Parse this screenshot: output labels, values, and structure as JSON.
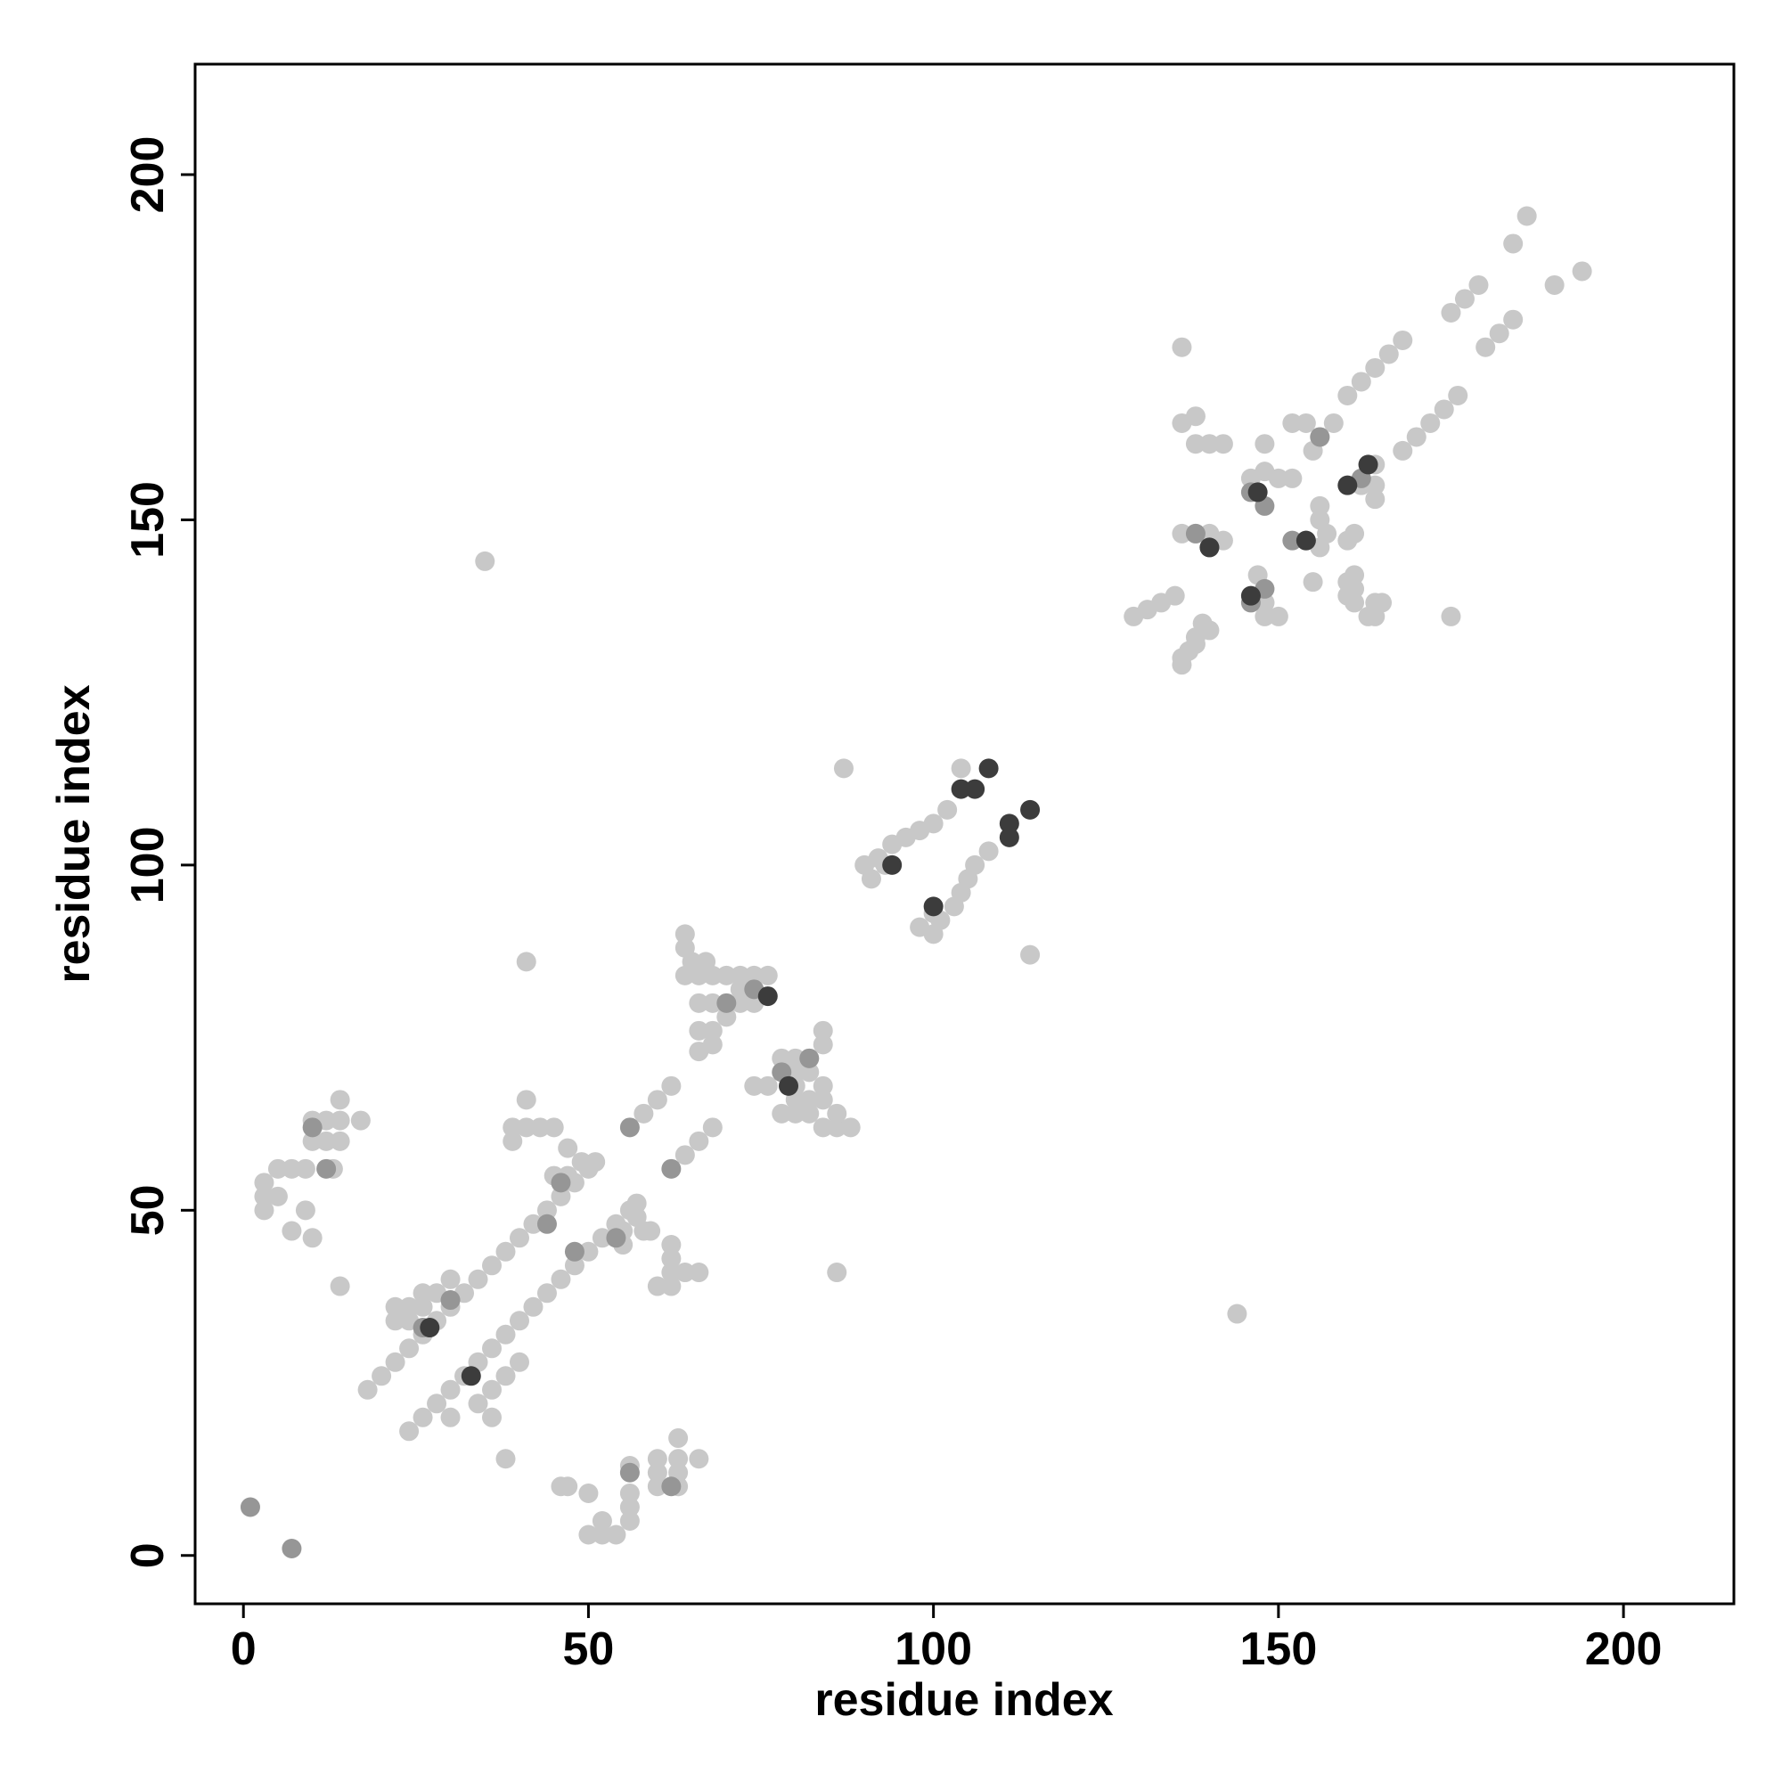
{
  "chart_data": {
    "type": "scatter",
    "x_label": "residue index",
    "y_label": "residue index",
    "xlim": [
      -7,
      216
    ],
    "ylim": [
      -7,
      216
    ],
    "xticks": [
      0,
      50,
      100,
      150,
      200
    ],
    "yticks": [
      0,
      50,
      100,
      150,
      200
    ],
    "series": [
      {
        "color": "#c8c8c8",
        "x": [
          18,
          20,
          22,
          24,
          26,
          28,
          30,
          32,
          34,
          36,
          38,
          40,
          42,
          44,
          46,
          48,
          50,
          22,
          22,
          24,
          26,
          28,
          30,
          24,
          26,
          24,
          26,
          28,
          30,
          32,
          34,
          36,
          38,
          40,
          42,
          44,
          46,
          48,
          50,
          52,
          54,
          56,
          34,
          36,
          36,
          38,
          40,
          30,
          35,
          144,
          41,
          86,
          3,
          3,
          3,
          5,
          5,
          7,
          7,
          9,
          10,
          10,
          10,
          12,
          12,
          14,
          14,
          14,
          17,
          9,
          13,
          50,
          52,
          54,
          52,
          56,
          56,
          47,
          50,
          46,
          60,
          63,
          63,
          60,
          66,
          60,
          63,
          63,
          56,
          56,
          38,
          14,
          39,
          39,
          41,
          43,
          45,
          41,
          47,
          47,
          45,
          49,
          51,
          60,
          62,
          62,
          62,
          62,
          66,
          59,
          55,
          55,
          57,
          57,
          58,
          64,
          58,
          60,
          62,
          64,
          66,
          68,
          64,
          64,
          65,
          67,
          64,
          66,
          68,
          70,
          72,
          74,
          76,
          66,
          68,
          72,
          74,
          66,
          68,
          70,
          66,
          68,
          72,
          78,
          80,
          82,
          84,
          86,
          88,
          84,
          82,
          84,
          80,
          80,
          82,
          82,
          84,
          84,
          80,
          80,
          76,
          74,
          78,
          86,
          90,
          92,
          94,
          96,
          98,
          100,
          102,
          104,
          91,
          93,
          100,
          101,
          103,
          104,
          105,
          106,
          108,
          98,
          100,
          87,
          114,
          129,
          131,
          133,
          135,
          160,
          162,
          164,
          166,
          168,
          175,
          177,
          179,
          184,
          186,
          136,
          136,
          137,
          138,
          139,
          168,
          170,
          172,
          174,
          176,
          180,
          182,
          184,
          190,
          194,
          175,
          136,
          138,
          138,
          140,
          142,
          136,
          138,
          140,
          142,
          146,
          148,
          150,
          152,
          148,
          136,
          138,
          140,
          150,
          148,
          164,
          165,
          161,
          161,
          161,
          148,
          148,
          148,
          147,
          156,
          157,
          156,
          156,
          161,
          155,
          160,
          160,
          164,
          163,
          152,
          154,
          156,
          158,
          155,
          162,
          164,
          164,
          164,
          160
        ],
        "values": [
          24,
          26,
          28,
          30,
          32,
          34,
          36,
          38,
          40,
          42,
          44,
          46,
          48,
          50,
          52,
          54,
          56,
          34,
          36,
          36,
          38,
          38,
          40,
          34,
          36,
          18,
          20,
          22,
          24,
          26,
          28,
          30,
          32,
          34,
          36,
          38,
          40,
          42,
          44,
          46,
          48,
          50,
          22,
          20,
          24,
          26,
          28,
          20,
          144,
          35,
          86,
          41,
          50,
          52,
          54,
          52,
          56,
          56,
          47,
          50,
          46,
          60,
          63,
          63,
          60,
          66,
          60,
          63,
          63,
          56,
          56,
          3,
          3,
          3,
          5,
          5,
          7,
          10,
          9,
          10,
          10,
          10,
          12,
          12,
          14,
          14,
          14,
          17,
          9,
          13,
          14,
          39,
          60,
          62,
          62,
          62,
          62,
          66,
          59,
          55,
          55,
          57,
          57,
          39,
          39,
          41,
          43,
          45,
          41,
          47,
          47,
          45,
          49,
          51,
          47,
          41,
          64,
          66,
          68,
          58,
          60,
          62,
          90,
          88,
          86,
          86,
          84,
          84,
          84,
          84,
          84,
          84,
          84,
          80,
          80,
          80,
          80,
          76,
          76,
          78,
          73,
          74,
          82,
          64,
          64,
          64,
          62,
          62,
          62,
          66,
          66,
          68,
          66,
          68,
          70,
          72,
          74,
          76,
          72,
          70,
          68,
          68,
          72,
          64,
          100,
          101,
          103,
          104,
          105,
          106,
          108,
          114,
          98,
          100,
          90,
          92,
          94,
          96,
          98,
          100,
          102,
          91,
          93,
          114,
          87,
          136,
          137,
          138,
          139,
          168,
          170,
          172,
          174,
          176,
          180,
          182,
          184,
          190,
          194,
          175,
          129,
          131,
          133,
          135,
          160,
          162,
          164,
          166,
          168,
          175,
          177,
          179,
          184,
          186,
          136,
          164,
          165,
          161,
          161,
          161,
          148,
          148,
          148,
          147,
          156,
          157,
          156,
          156,
          161,
          130,
          132,
          134,
          136,
          138,
          136,
          138,
          138,
          140,
          142,
          136,
          138,
          140,
          142,
          146,
          148,
          150,
          152,
          148,
          141,
          139,
          141,
          138,
          136,
          164,
          164,
          162,
          164,
          160,
          155,
          155,
          158,
          153,
          147
        ]
      },
      {
        "color": "#969696",
        "x": [
          1,
          7,
          26,
          30,
          44,
          48,
          70,
          74,
          78,
          82,
          152,
          154,
          146,
          148,
          138,
          140,
          148,
          146,
          156,
          162,
          12,
          56,
          10,
          62,
          54,
          46,
          56,
          62
        ],
        "values": [
          7,
          1,
          33,
          37,
          48,
          44,
          80,
          82,
          70,
          72,
          147,
          147,
          154,
          152,
          148,
          146,
          140,
          138,
          162,
          156,
          56,
          12,
          62,
          10,
          46,
          54,
          62,
          56
        ]
      },
      {
        "color": "#3c3c3c",
        "x": [
          27,
          33,
          76,
          79,
          94,
          100,
          104,
          106,
          108,
          111,
          111,
          114,
          147,
          154,
          140,
          146,
          160,
          163
        ],
        "values": [
          33,
          26,
          81,
          68,
          100,
          94,
          111,
          111,
          114,
          104,
          106,
          108,
          154,
          147,
          146,
          139,
          155,
          158
        ]
      }
    ]
  }
}
